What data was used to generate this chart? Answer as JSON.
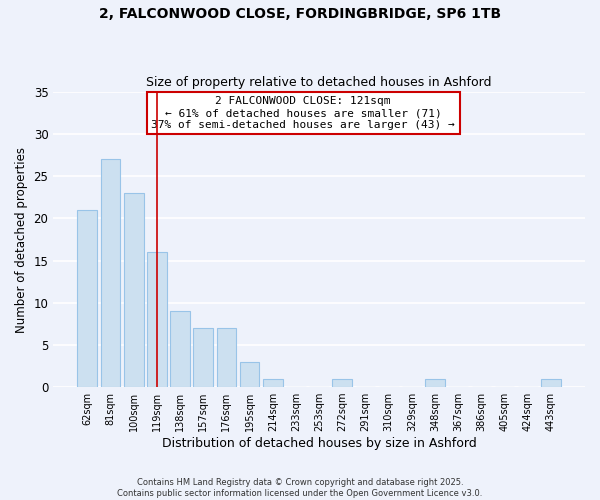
{
  "title1": "2, FALCONWOOD CLOSE, FORDINGBRIDGE, SP6 1TB",
  "title2": "Size of property relative to detached houses in Ashford",
  "xlabel": "Distribution of detached houses by size in Ashford",
  "ylabel": "Number of detached properties",
  "bar_color": "#cce0f0",
  "bar_edge_color": "#99c4e8",
  "categories": [
    "62sqm",
    "81sqm",
    "100sqm",
    "119sqm",
    "138sqm",
    "157sqm",
    "176sqm",
    "195sqm",
    "214sqm",
    "233sqm",
    "253sqm",
    "272sqm",
    "291sqm",
    "310sqm",
    "329sqm",
    "348sqm",
    "367sqm",
    "386sqm",
    "405sqm",
    "424sqm",
    "443sqm"
  ],
  "values": [
    21,
    27,
    23,
    16,
    9,
    7,
    7,
    3,
    1,
    0,
    0,
    1,
    0,
    0,
    0,
    1,
    0,
    0,
    0,
    0,
    1
  ],
  "ylim": [
    0,
    35
  ],
  "yticks": [
    0,
    5,
    10,
    15,
    20,
    25,
    30,
    35
  ],
  "annotation_box_text": "2 FALCONWOOD CLOSE: 121sqm\n← 61% of detached houses are smaller (71)\n37% of semi-detached houses are larger (43) →",
  "annotation_box_color": "#ffffff",
  "annotation_box_edge_color": "#cc0000",
  "property_bar_index": 3,
  "property_line_color": "#cc0000",
  "footer_text": "Contains HM Land Registry data © Crown copyright and database right 2025.\nContains public sector information licensed under the Open Government Licence v3.0.",
  "background_color": "#eef2fb",
  "grid_color": "#ffffff"
}
